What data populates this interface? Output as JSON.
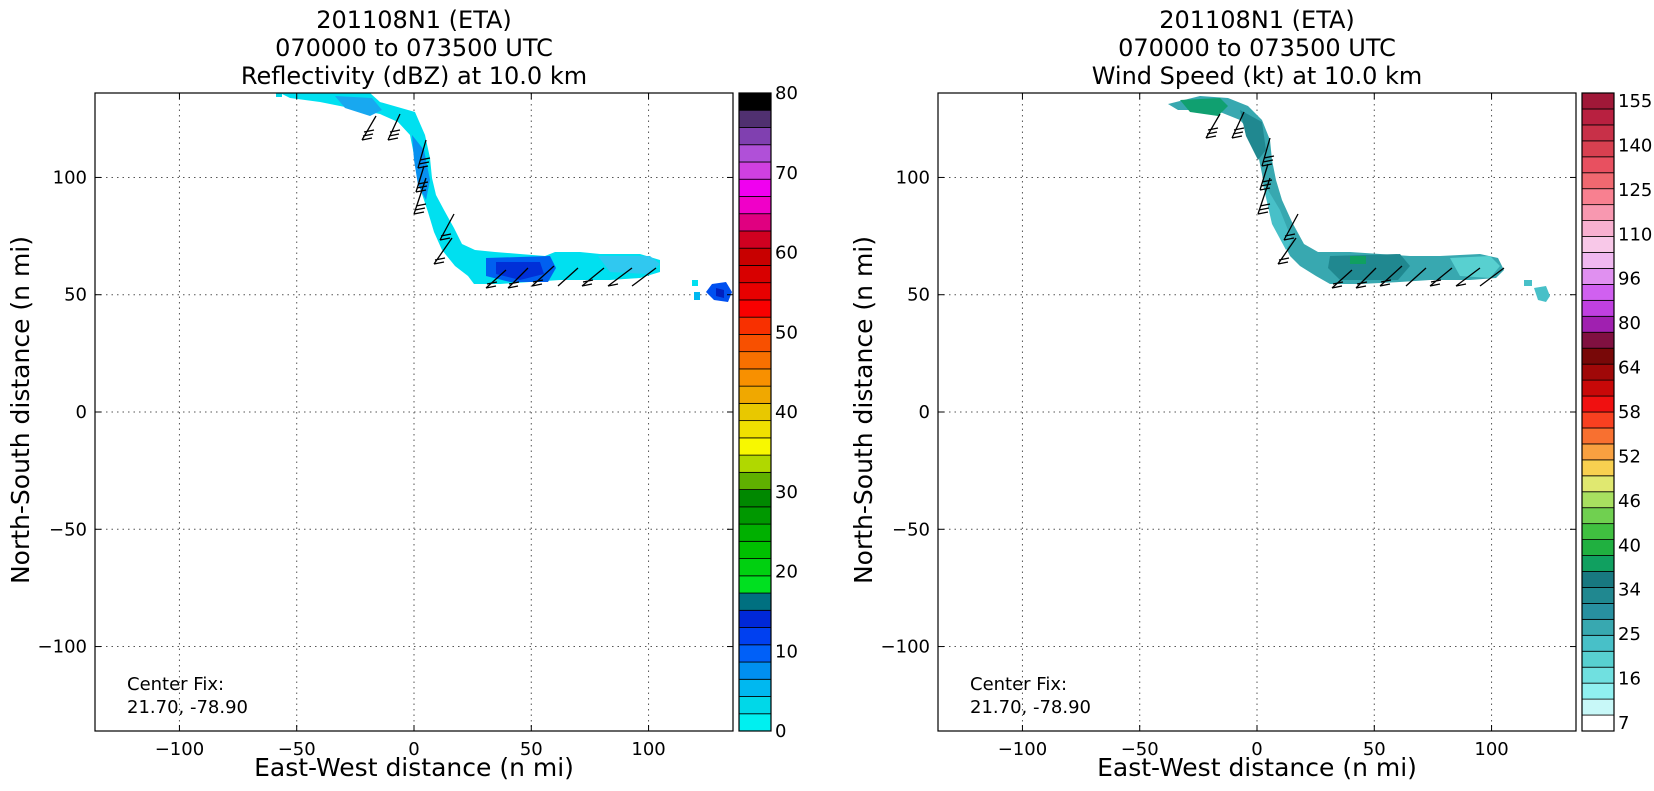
{
  "charts": [
    {
      "id": "reflectivity",
      "title_lines": [
        "201108N1 (ETA)",
        "070000 to 073500 UTC",
        "Reflectivity (dBZ) at 10.0 km"
      ],
      "xlabel": "East-West distance (n mi)",
      "ylabel": "North-South distance (n mi)",
      "xticks": [
        -100,
        -50,
        0,
        50,
        100
      ],
      "yticks": [
        -100,
        -50,
        0,
        50,
        100
      ],
      "xtick_labels": [
        "−100",
        "−50",
        "0",
        "50",
        "100"
      ],
      "ytick_labels": [
        "−100",
        "−50",
        "0",
        "50",
        "100"
      ],
      "center_fix_label": "Center Fix:",
      "center_fix_value": "21.70, -78.90",
      "colorbar": {
        "labels": [
          "0",
          "10",
          "20",
          "30",
          "40",
          "50",
          "60",
          "70",
          "80"
        ],
        "colors": [
          "#00f0f0",
          "#00d8e8",
          "#00b8f0",
          "#0090f0",
          "#0060f8",
          "#0040f0",
          "#0028d8",
          "#007080",
          "#00e020",
          "#00d010",
          "#00c000",
          "#00b000",
          "#009800",
          "#008800",
          "#60b000",
          "#b0d800",
          "#f8f800",
          "#f0e000",
          "#e8c800",
          "#f0a800",
          "#f89000",
          "#f87000",
          "#f85000",
          "#f83000",
          "#f80000",
          "#e80000",
          "#d80000",
          "#c80000",
          "#d00020",
          "#e00080",
          "#f000c8",
          "#f000f0",
          "#d040e0",
          "#b050d8",
          "#8040b0",
          "#503070",
          "#000000"
        ]
      }
    },
    {
      "id": "windspeed",
      "title_lines": [
        "201108N1 (ETA)",
        "070000 to 073500 UTC",
        "Wind Speed (kt) at 10.0 km"
      ],
      "xlabel": "East-West distance (n mi)",
      "ylabel": "North-South distance (n mi)",
      "xticks": [
        -100,
        -50,
        0,
        50,
        100
      ],
      "yticks": [
        -100,
        -50,
        0,
        50,
        100
      ],
      "xtick_labels": [
        "−100",
        "−50",
        "0",
        "50",
        "100"
      ],
      "ytick_labels": [
        "−100",
        "−50",
        "0",
        "50",
        "100"
      ],
      "center_fix_label": "Center Fix:",
      "center_fix_value": "21.70, -78.90",
      "colorbar": {
        "labels": [
          "7",
          "16",
          "25",
          "34",
          "40",
          "46",
          "52",
          "58",
          "64",
          "80",
          "96",
          "110",
          "125",
          "140",
          "155"
        ],
        "colors": [
          "#ffffff",
          "#c8f8f8",
          "#90f0f0",
          "#70e0e0",
          "#58d0d0",
          "#48c0c8",
          "#38a8b0",
          "#2890a0",
          "#208890",
          "#187880",
          "#10a060",
          "#20b040",
          "#40c040",
          "#70d050",
          "#a8e060",
          "#e0e870",
          "#f8d050",
          "#f8a040",
          "#f87030",
          "#f84020",
          "#f01010",
          "#c80808",
          "#a00808",
          "#780808",
          "#801040",
          "#a020b0",
          "#c040e0",
          "#d060f0",
          "#e090f0",
          "#f0b8f0",
          "#f8c8e8",
          "#f8b0d0",
          "#f898b0",
          "#f88090",
          "#f06870",
          "#e85060",
          "#d84050",
          "#c83048",
          "#b82040",
          "#a01838"
        ]
      }
    }
  ]
}
